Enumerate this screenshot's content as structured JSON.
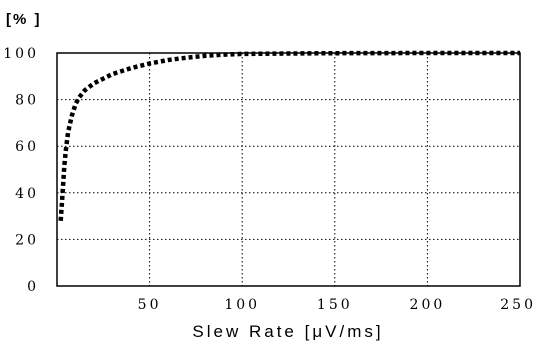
{
  "chart_data": {
    "type": "line",
    "ylabel": "[% ]",
    "xlabel": "Slew Rate [μV/ms]",
    "xlim": [
      0,
      250
    ],
    "ylim": [
      0,
      100
    ],
    "x_ticks": [
      50,
      100,
      150,
      200,
      250
    ],
    "x_tick_labels": [
      "50",
      "100",
      "150",
      "200",
      "250"
    ],
    "y_ticks": [
      0,
      20,
      40,
      60,
      80,
      100
    ],
    "y_tick_labels": [
      "0",
      "20",
      "40",
      "60",
      "80",
      "100"
    ],
    "grid": true,
    "series": [
      {
        "color": "#000000",
        "style": "dotted",
        "x": [
          2,
          3,
          4,
          5,
          6,
          8,
          10,
          12,
          15,
          20,
          25,
          30,
          40,
          50,
          60,
          70,
          80,
          90,
          100,
          125,
          150,
          200,
          250
        ],
        "y": [
          28,
          40,
          52,
          60,
          66,
          73,
          78,
          81,
          84,
          87,
          89,
          91,
          93.5,
          95.5,
          97,
          98,
          98.8,
          99.3,
          99.6,
          99.8,
          99.9,
          100,
          100
        ]
      }
    ]
  }
}
